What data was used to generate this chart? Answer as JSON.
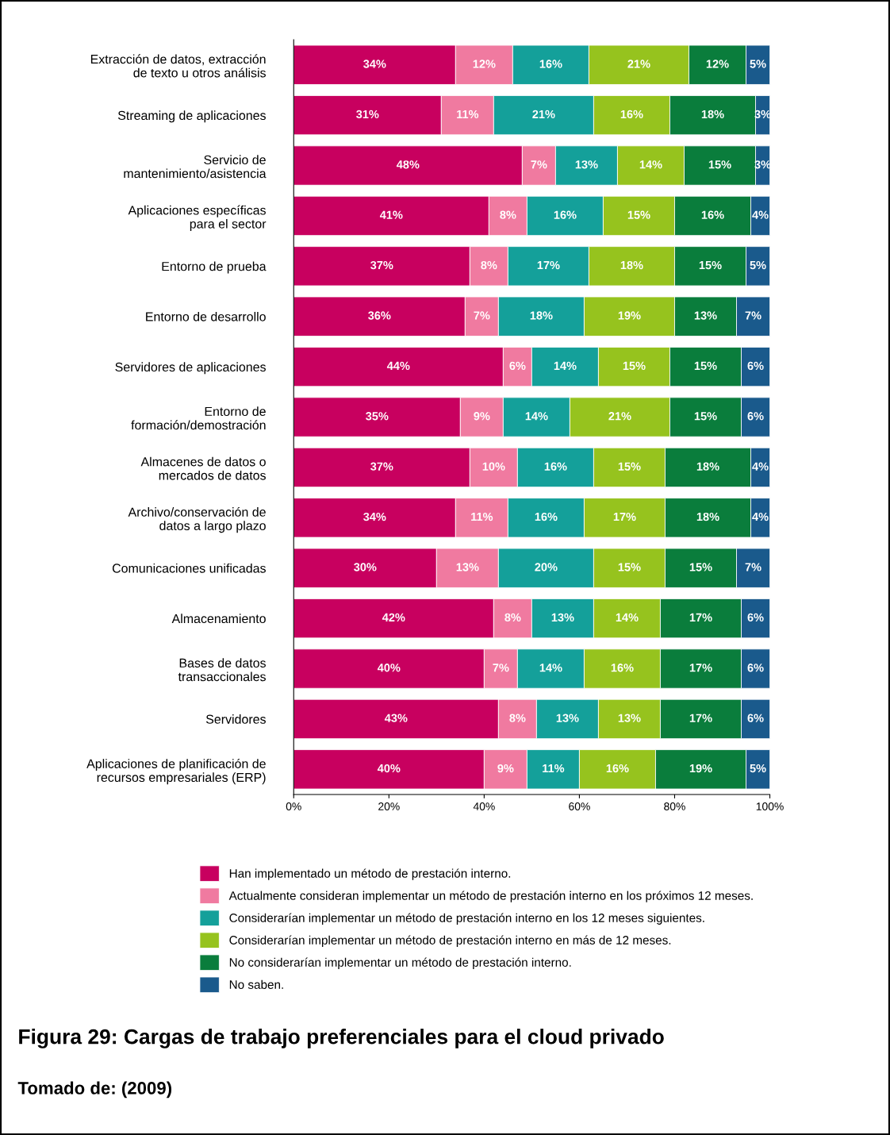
{
  "chart_data": {
    "type": "bar",
    "orientation": "horizontal",
    "stacked": true,
    "grid": false,
    "legend": "bottom",
    "title": "Figura 29: Cargas de trabajo preferenciales para el cloud privado",
    "annotations": [
      "Tomado de: (2009)"
    ],
    "categories": [
      "Extracción de datos, extracción\nde texto u otros análisis",
      "Streaming de aplicaciones",
      "Servicio de\nmantenimiento/asistencia",
      "Aplicaciones específicas\npara el sector",
      "Entorno de prueba",
      "Entorno de desarrollo",
      "Servidores de aplicaciones",
      "Entorno de\nformación/demostración",
      "Almacenes de datos o\nmercados de datos",
      "Archivo/conservación de\ndatos a largo plazo",
      "Comunicaciones unificadas",
      "Almacenamiento",
      "Bases de datos\ntransaccionales",
      "Servidores",
      "Aplicaciones de planificación de\nrecursos empresariales (ERP)"
    ],
    "xlim": [
      0,
      100
    ],
    "xticks": [
      {
        "value": 0,
        "label": "0%"
      },
      {
        "value": 20,
        "label": "20%"
      },
      {
        "value": 40,
        "label": "40%"
      },
      {
        "value": 60,
        "label": "60%"
      },
      {
        "value": 80,
        "label": "80%"
      },
      {
        "value": 100,
        "label": "100%"
      }
    ],
    "series": [
      {
        "name": "Han implementado un método de prestación interno.",
        "color": "#c8005f",
        "values": [
          34,
          31,
          48,
          41,
          37,
          36,
          44,
          35,
          37,
          34,
          30,
          42,
          40,
          43,
          40
        ],
        "value_labels": [
          "34%",
          "31%",
          "48%",
          "41%",
          "37%",
          "36%",
          "44%",
          "35%",
          "37%",
          "34%",
          "30%",
          "42%",
          "40%",
          "43%",
          "40%"
        ]
      },
      {
        "name": "Actualmente consideran implementar un método de prestación interno en los próximos 12 meses.",
        "color": "#f07aa0",
        "values": [
          12,
          11,
          7,
          8,
          8,
          7,
          6,
          9,
          10,
          11,
          13,
          8,
          7,
          8,
          9
        ],
        "value_labels": [
          "12%",
          "11%",
          "7%",
          "8%",
          "8%",
          "7%",
          "6%",
          "9%",
          "10%",
          "11%",
          "13%",
          "8%",
          "7%",
          "8%",
          "9%"
        ]
      },
      {
        "name": "Considerarían implementar un método de prestación interno en los 12 meses siguientes.",
        "color": "#14a09a",
        "values": [
          16,
          21,
          13,
          16,
          17,
          18,
          14,
          14,
          16,
          16,
          20,
          13,
          14,
          13,
          11
        ],
        "value_labels": [
          "16%",
          "21%",
          "13%",
          "16%",
          "17%",
          "18%",
          "14%",
          "14%",
          "16%",
          "16%",
          "20%",
          "13%",
          "14%",
          "13%",
          "11%"
        ]
      },
      {
        "name": "Considerarían implementar un método de prestación interno en más de 12 meses.",
        "color": "#96c31e",
        "values": [
          21,
          16,
          14,
          15,
          18,
          19,
          15,
          21,
          15,
          17,
          15,
          14,
          16,
          13,
          16
        ],
        "value_labels": [
          "21%",
          "16%",
          "14%",
          "15%",
          "18%",
          "19%",
          "15%",
          "21%",
          "15%",
          "17%",
          "15%",
          "14%",
          "16%",
          "13%",
          "16%"
        ]
      },
      {
        "name": "No considerarían implementar un método de prestación interno.",
        "color": "#0a7d3c",
        "values": [
          12,
          18,
          15,
          16,
          15,
          13,
          15,
          15,
          18,
          18,
          15,
          17,
          17,
          17,
          19
        ],
        "value_labels": [
          "12%",
          "18%",
          "15%",
          "16%",
          "15%",
          "13%",
          "15%",
          "15%",
          "18%",
          "18%",
          "15%",
          "17%",
          "17%",
          "17%",
          "19%"
        ]
      },
      {
        "name": "No saben.",
        "color": "#1a5a8c",
        "values": [
          5,
          3,
          3,
          4,
          5,
          7,
          6,
          6,
          4,
          4,
          7,
          6,
          6,
          6,
          5
        ],
        "value_labels": [
          "5%",
          "3%",
          "3%",
          "4%",
          "5%",
          "7%",
          "6%",
          "6%",
          "4%",
          "4%",
          "7%",
          "6%",
          "6%",
          "6%",
          "5%"
        ]
      }
    ]
  }
}
